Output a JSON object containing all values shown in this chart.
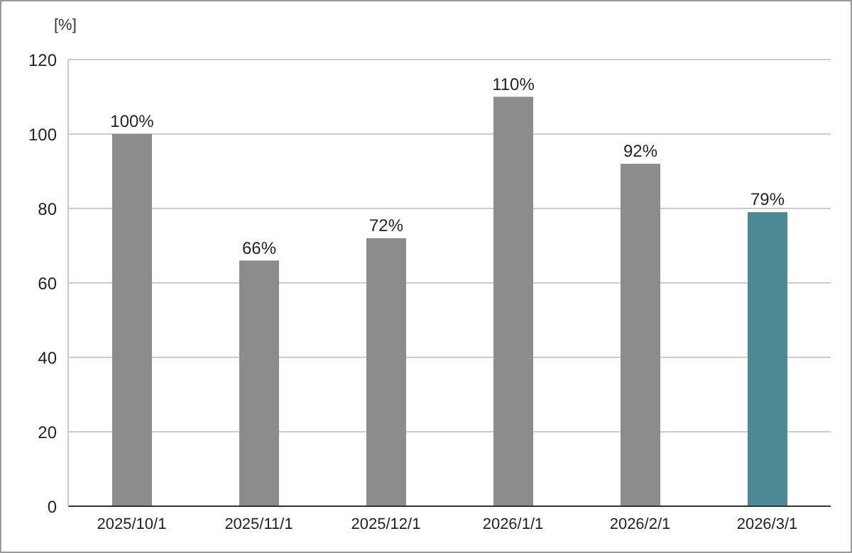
{
  "chart_data": {
    "type": "bar",
    "ylabel": "[%]",
    "categories": [
      "2025/10/1",
      "2025/11/1",
      "2025/12/1",
      "2026/1/1",
      "2026/2/1",
      "2026/3/1"
    ],
    "values": [
      100,
      66,
      72,
      110,
      92,
      79
    ],
    "colors": [
      "#8c8c8c",
      "#8c8c8c",
      "#8c8c8c",
      "#8c8c8c",
      "#8c8c8c",
      "#4b8a94"
    ],
    "value_labels": [
      "100%",
      "66%",
      "72%",
      "110%",
      "92%",
      "79%"
    ],
    "ylim": [
      0,
      120
    ],
    "yticks": [
      0,
      20,
      40,
      60,
      80,
      100,
      120
    ],
    "grid": "y",
    "legend": false
  }
}
